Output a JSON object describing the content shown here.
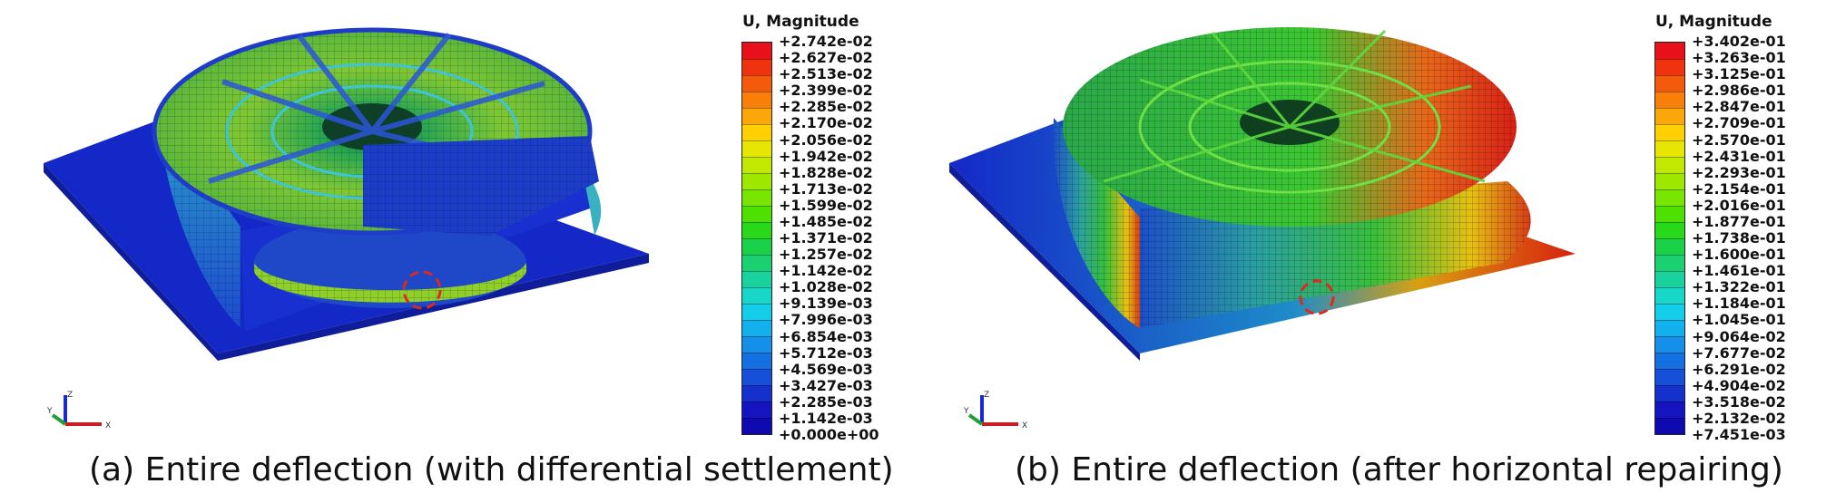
{
  "panels": [
    {
      "id": "a",
      "caption": "(a) Entire deflection (with differential settlement)",
      "legend_title": "U, Magnitude",
      "legend_values": [
        "+2.742e-02",
        "+2.627e-02",
        "+2.513e-02",
        "+2.399e-02",
        "+2.285e-02",
        "+2.170e-02",
        "+2.056e-02",
        "+1.942e-02",
        "+1.828e-02",
        "+1.713e-02",
        "+1.599e-02",
        "+1.485e-02",
        "+1.371e-02",
        "+1.257e-02",
        "+1.142e-02",
        "+1.028e-02",
        "+9.139e-03",
        "+7.996e-03",
        "+6.854e-03",
        "+5.712e-03",
        "+4.569e-03",
        "+3.427e-03",
        "+2.285e-03",
        "+1.142e-03",
        "+0.000e+00"
      ]
    },
    {
      "id": "b",
      "caption": "(b) Entire deflection (after horizontal repairing)",
      "legend_title": "U, Magnitude",
      "legend_values": [
        "+3.402e-01",
        "+3.263e-01",
        "+3.125e-01",
        "+2.986e-01",
        "+2.847e-01",
        "+2.709e-01",
        "+2.570e-01",
        "+2.431e-01",
        "+2.293e-01",
        "+2.154e-01",
        "+2.016e-01",
        "+1.877e-01",
        "+1.738e-01",
        "+1.600e-01",
        "+1.461e-01",
        "+1.322e-01",
        "+1.184e-01",
        "+1.045e-01",
        "+9.064e-02",
        "+7.677e-02",
        "+6.291e-02",
        "+4.904e-02",
        "+3.518e-02",
        "+2.132e-02",
        "+7.451e-03"
      ]
    }
  ],
  "triad_labels": {
    "y": "Y",
    "z": "Z",
    "x": "X"
  },
  "colors": {
    "legend_scale": [
      "#e8101a",
      "#f0320f",
      "#f45a0c",
      "#f8800a",
      "#fba70a",
      "#ffd000",
      "#e6e600",
      "#c3e800",
      "#9ee800",
      "#78e600",
      "#4fe000",
      "#2ad81a",
      "#1ad24a",
      "#1ad070",
      "#19d29e",
      "#18d6c8",
      "#14cde8",
      "#12b0ec",
      "#1490e8",
      "#1470e0",
      "#1650d8",
      "#1630cc",
      "#1414c0",
      "#0f0ab0"
    ],
    "base_plate": "#1428c8",
    "mesh": "#0a0a40",
    "highlight": "#e0281e"
  }
}
